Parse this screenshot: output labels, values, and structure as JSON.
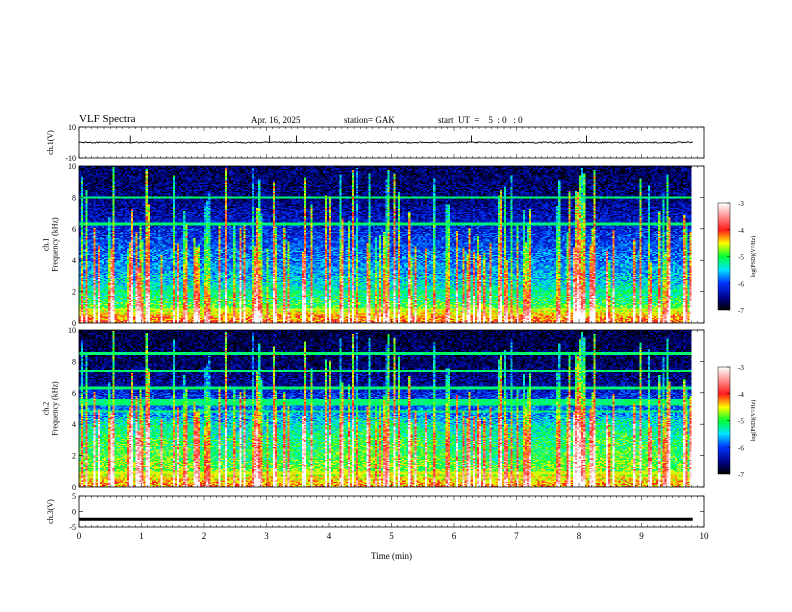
{
  "header": {
    "title": "VLF  Spectra",
    "date": "Apr. 16, 2025",
    "station": "station= GAK",
    "start": "start  UT  =    5  : 0   : 0"
  },
  "chart_data": [
    {
      "type": "line",
      "panel": "ch1-waveform",
      "ylabel": "ch.1(V)",
      "ylim": [
        -10,
        10
      ],
      "y_tick_labels": [
        "10",
        "-10"
      ],
      "xlim": [
        0,
        10
      ],
      "series": [
        {
          "x": [
            0,
            10
          ],
          "y": [
            0,
            0
          ]
        }
      ],
      "spike_times_min": [
        0.82,
        3.05,
        3.48,
        6.28,
        8.12
      ]
    },
    {
      "type": "heatmap",
      "panel": "ch1-spectrogram",
      "ylabel": "ch.1\nFrequency  (kHz)",
      "ylim": [
        0,
        10
      ],
      "y_tick_labels": [
        "0",
        "2",
        "4",
        "6",
        "8",
        "10"
      ],
      "xlim": [
        0,
        10
      ],
      "data_end_min": 9.82,
      "colorbar": {
        "label": "log(PSD)(V²/Hz)",
        "range": [
          -7,
          -3
        ],
        "tick_labels": [
          "-3",
          "-4",
          "-5",
          "-6",
          "-7"
        ],
        "colormap": [
          "#ffffff",
          "#ff1a1a",
          "#ffff00",
          "#00ff33",
          "#00e6ff",
          "#0033ff",
          "#000080",
          "#000000"
        ]
      },
      "background_levels_by_khz": [
        [
          0.0,
          -4.0
        ],
        [
          0.5,
          -4.4
        ],
        [
          1.0,
          -4.9
        ],
        [
          2.0,
          -5.3
        ],
        [
          3.0,
          -5.6
        ],
        [
          4.0,
          -5.8
        ],
        [
          5.0,
          -6.0
        ],
        [
          6.0,
          -6.2
        ],
        [
          7.0,
          -6.4
        ],
        [
          8.0,
          -6.6
        ],
        [
          10.0,
          -6.7
        ]
      ],
      "horizontal_lines_khz": [
        0.25,
        0.45,
        0.65,
        0.85,
        2.0,
        6.3,
        8.0
      ]
    },
    {
      "type": "heatmap",
      "panel": "ch2-spectrogram",
      "ylabel": "ch.2\nFrequency  (kHz)",
      "ylim": [
        0,
        10
      ],
      "y_tick_labels": [
        "0",
        "2",
        "4",
        "6",
        "8",
        "10"
      ],
      "xlim": [
        0,
        10
      ],
      "data_end_min": 9.82,
      "colorbar": {
        "label": "log(PSD)(V²/Hz)",
        "range": [
          -7,
          -3
        ],
        "tick_labels": [
          "-3",
          "-4",
          "-5",
          "-6",
          "-7"
        ],
        "colormap": [
          "#ffffff",
          "#ff1a1a",
          "#ffff00",
          "#00ff33",
          "#00e6ff",
          "#0033ff",
          "#000080",
          "#000000"
        ]
      },
      "background_levels_by_khz": [
        [
          0.0,
          -4.2
        ],
        [
          1.0,
          -4.8
        ],
        [
          2.0,
          -5.0
        ],
        [
          3.0,
          -5.1
        ],
        [
          4.0,
          -5.4
        ],
        [
          5.0,
          -5.9
        ],
        [
          6.0,
          -6.2
        ],
        [
          6.5,
          -6.5
        ],
        [
          8.0,
          -6.7
        ],
        [
          10.0,
          -6.8
        ]
      ],
      "horizontal_lines_khz": [
        0.3,
        0.6,
        0.9,
        1.6,
        4.8,
        5.3,
        5.5,
        6.3,
        7.4,
        8.5
      ]
    },
    {
      "type": "line",
      "panel": "ch3-waveform",
      "ylabel": "ch.3(V)",
      "ylim": [
        -5,
        5
      ],
      "y_tick_labels": [
        "5",
        "0",
        "-5"
      ],
      "xlim": [
        0,
        10
      ],
      "xlabel": "Time  (min)",
      "x_tick_labels": [
        "0",
        "1",
        "2",
        "3",
        "4",
        "5",
        "6",
        "7",
        "8",
        "9",
        "10"
      ],
      "series": [
        {
          "x": [
            0,
            9.82
          ],
          "y": [
            -2.5,
            -2.5
          ]
        }
      ]
    }
  ]
}
